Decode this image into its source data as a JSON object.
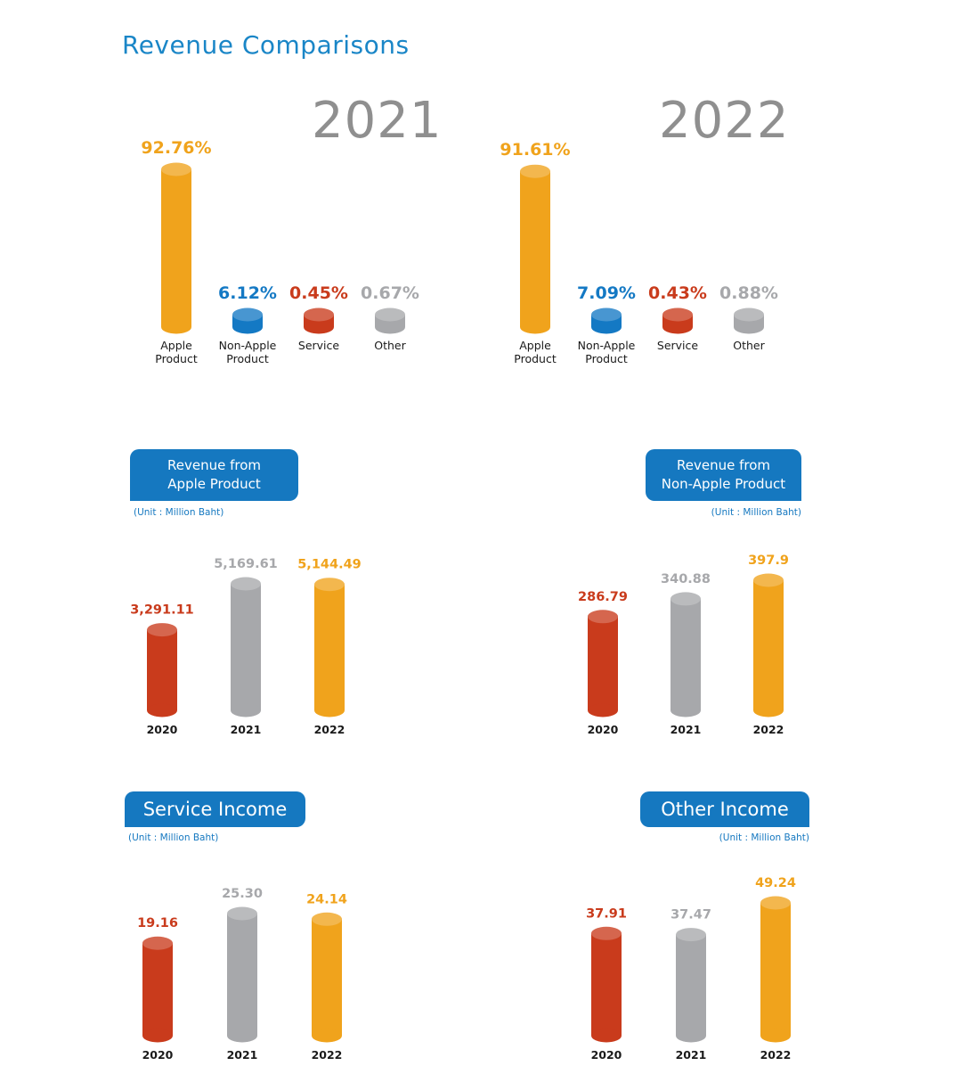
{
  "page": {
    "title": "Revenue Comparisons"
  },
  "colors": {
    "heading": "#1a86c7",
    "pill": "#1578c0",
    "unit_text": "#1578c0",
    "year_text": "#8f8f8f",
    "orange": "#f0a31c",
    "blue": "#1479c4",
    "red": "#c93b1c",
    "gray": "#a7a8ab"
  },
  "comparison": {
    "y2021": {
      "year": "2021"
    },
    "y2022": {
      "year": "2022"
    }
  },
  "revenue_apple": {
    "heading_line1": "Revenue from",
    "heading_line2": "Apple Product",
    "unit": "(Unit : Million Baht)"
  },
  "revenue_non_apple": {
    "heading_line1": "Revenue from",
    "heading_line2": "Non-Apple Product",
    "unit": "(Unit : Million Baht)"
  },
  "service_income": {
    "heading": "Service Income",
    "unit": "(Unit : Million Baht)"
  },
  "other_income": {
    "heading": "Other Income",
    "unit": "(Unit : Million Baht)"
  },
  "chart_data": [
    {
      "id": "share-2021",
      "type": "bar",
      "title": "2021",
      "categories": [
        [
          "Apple",
          "Product"
        ],
        [
          "Non-Apple",
          "Product"
        ],
        [
          "Service"
        ],
        [
          "Other"
        ]
      ],
      "values": [
        92.76,
        6.12,
        0.45,
        0.67
      ],
      "value_labels": [
        "92.76%",
        "6.12%",
        "0.45%",
        "0.67%"
      ],
      "colors": [
        "orange",
        "blue",
        "red",
        "gray"
      ],
      "unit": "%"
    },
    {
      "id": "share-2022",
      "type": "bar",
      "title": "2022",
      "categories": [
        [
          "Apple",
          "Product"
        ],
        [
          "Non-Apple",
          "Product"
        ],
        [
          "Service"
        ],
        [
          "Other"
        ]
      ],
      "values": [
        91.61,
        7.09,
        0.43,
        0.88
      ],
      "value_labels": [
        "91.61%",
        "7.09%",
        "0.43%",
        "0.88%"
      ],
      "colors": [
        "orange",
        "blue",
        "red",
        "gray"
      ],
      "unit": "%"
    },
    {
      "id": "apple-product",
      "type": "bar",
      "title": "Revenue from Apple Product",
      "categories": [
        [
          "2020"
        ],
        [
          "2021"
        ],
        [
          "2022"
        ]
      ],
      "values": [
        3291.11,
        5169.61,
        5144.49
      ],
      "value_labels": [
        "3,291.11",
        "5,169.61",
        "5,144.49"
      ],
      "colors": [
        "red",
        "gray",
        "orange"
      ],
      "unit": "Million Baht"
    },
    {
      "id": "non-apple-product",
      "type": "bar",
      "title": "Revenue from Non-Apple Product",
      "categories": [
        [
          "2020"
        ],
        [
          "2021"
        ],
        [
          "2022"
        ]
      ],
      "values": [
        286.79,
        340.88,
        397.9
      ],
      "value_labels": [
        "286.79",
        "340.88",
        "397.9"
      ],
      "colors": [
        "red",
        "gray",
        "orange"
      ],
      "unit": "Million Baht"
    },
    {
      "id": "service-income",
      "type": "bar",
      "title": "Service Income",
      "categories": [
        [
          "2020"
        ],
        [
          "2021"
        ],
        [
          "2022"
        ]
      ],
      "values": [
        19.16,
        25.3,
        24.14
      ],
      "value_labels": [
        "19.16",
        "25.30",
        "24.14"
      ],
      "colors": [
        "red",
        "gray",
        "orange"
      ],
      "unit": "Million Baht"
    },
    {
      "id": "other-income",
      "type": "bar",
      "title": "Other Income",
      "categories": [
        [
          "2020"
        ],
        [
          "2021"
        ],
        [
          "2022"
        ]
      ],
      "values": [
        37.91,
        37.47,
        49.24
      ],
      "value_labels": [
        "37.91",
        "37.47",
        "49.24"
      ],
      "colors": [
        "red",
        "gray",
        "orange"
      ],
      "unit": "Million Baht"
    }
  ]
}
